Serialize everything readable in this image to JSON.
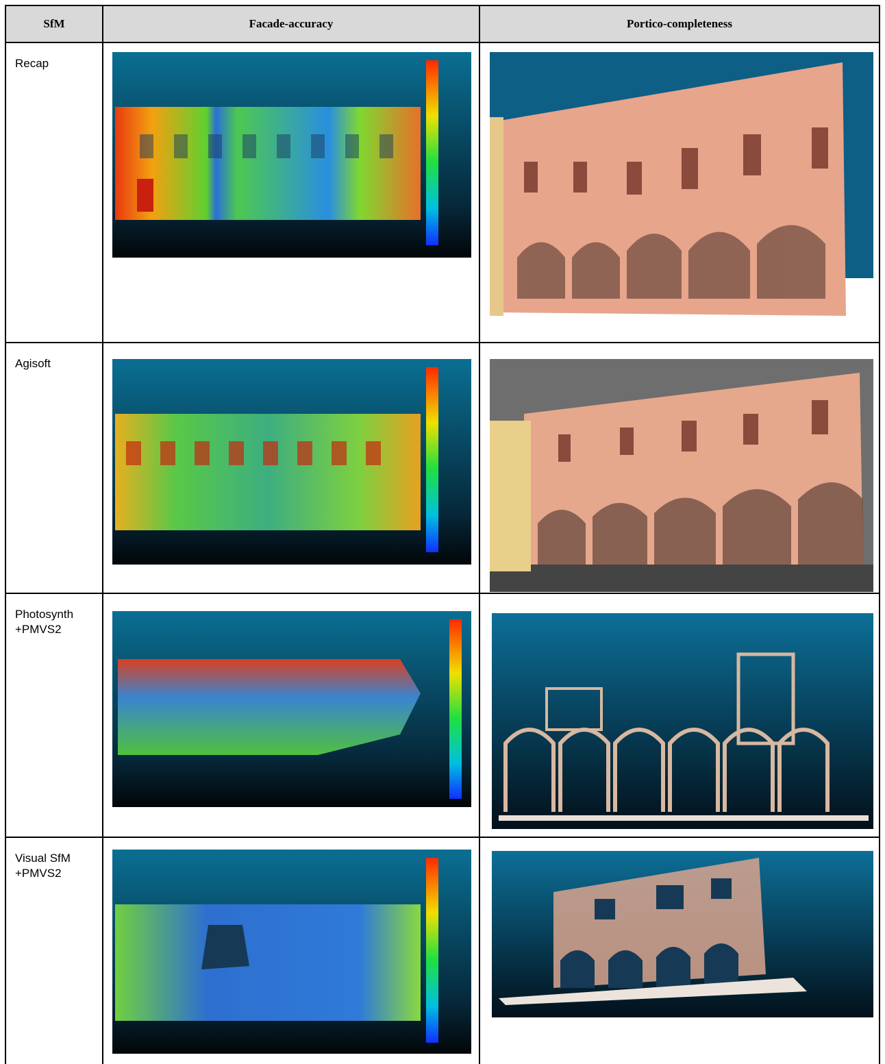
{
  "table": {
    "header": [
      "SfM",
      "Facade-accuracy",
      "Portico-completeness"
    ],
    "rows": [
      [
        "Recap"
      ],
      [
        "Agisoft"
      ],
      [
        "Photosynth\n+PMVS2"
      ],
      [
        "Visual SfM\n+PMVS2"
      ]
    ]
  }
}
